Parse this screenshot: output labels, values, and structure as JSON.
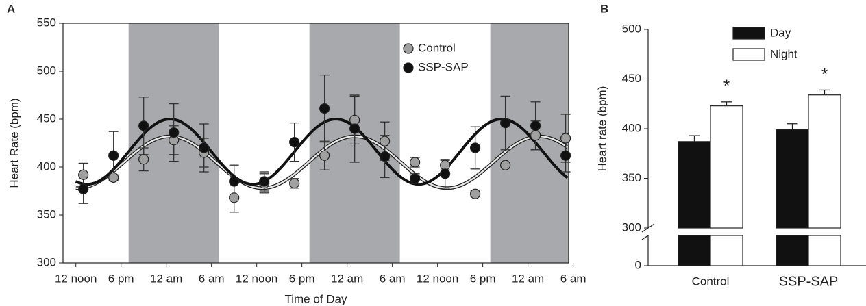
{
  "chart_data": [
    {
      "type": "scatter",
      "panel": "A",
      "xlabel": "Time of Day",
      "ylabel": "Heart Rate (bpm)",
      "xlim": [
        -1.7,
        65.4
      ],
      "ylim": [
        300,
        550
      ],
      "yticks": [
        300,
        350,
        400,
        450,
        500,
        550
      ],
      "xticks": [
        {
          "value": 0,
          "label": "12 noon"
        },
        {
          "value": 6,
          "label": "6 pm"
        },
        {
          "value": 12,
          "label": "12 am"
        },
        {
          "value": 18,
          "label": "6 am"
        },
        {
          "value": 24,
          "label": "12 noon"
        },
        {
          "value": 30,
          "label": "6 pm"
        },
        {
          "value": 36,
          "label": "12 am"
        },
        {
          "value": 42,
          "label": "6 am"
        },
        {
          "value": 48,
          "label": "12 noon"
        },
        {
          "value": 54,
          "label": "6 pm"
        },
        {
          "value": 60,
          "label": "12 am"
        },
        {
          "value": 66,
          "label": "6 am"
        }
      ],
      "shaded": [
        [
          7,
          19
        ],
        [
          31,
          43
        ],
        [
          55,
          65.4
        ]
      ],
      "shade_color": "#a7a9ac",
      "x": [
        1,
        5,
        9,
        13,
        17,
        21,
        25,
        29,
        33,
        37,
        41,
        45,
        49,
        53,
        57,
        61,
        65
      ],
      "series": [
        {
          "name": "Control",
          "color": "#a0a0a0",
          "values": [
            392,
            389,
            408,
            428,
            415,
            368,
            383,
            383,
            412,
            449,
            427,
            405,
            402,
            372,
            402,
            433,
            430
          ],
          "errors": [
            12,
            3,
            12,
            15,
            15,
            15,
            10,
            5,
            15,
            25,
            20,
            5,
            5,
            3,
            3,
            15,
            25
          ],
          "fit": {
            "mesor": 405,
            "amplitude": 27,
            "acrophase": 12.5,
            "period": 24.5
          }
        },
        {
          "name": "SSP-SAP",
          "color": "#111111",
          "values": [
            377,
            412,
            443,
            436,
            420,
            385,
            385,
            426,
            461,
            440,
            411,
            388,
            393,
            420,
            446,
            443,
            412
          ],
          "errors": [
            15,
            25,
            30,
            30,
            25,
            17,
            10,
            20,
            35,
            35,
            22,
            5,
            15,
            22,
            28,
            25,
            17
          ],
          "fit": {
            "mesor": 416,
            "amplitude": 34,
            "acrophase": 12.5,
            "period": 22
          }
        }
      ],
      "legend": "upper right"
    },
    {
      "type": "bar",
      "panel": "B",
      "ylabel": "Heart rate (bpm)",
      "categories": [
        "Control",
        "SSP-SAP"
      ],
      "ylim": [
        0,
        500
      ],
      "axis_break": [
        30,
        300
      ],
      "yticks": [
        0,
        300,
        350,
        400,
        450,
        500
      ],
      "series": [
        {
          "name": "Day",
          "color": "#111111",
          "values": [
            387,
            399
          ],
          "errors": [
            6,
            6
          ]
        },
        {
          "name": "Night",
          "color": "#ffffff",
          "values": [
            423,
            434
          ],
          "errors": [
            4,
            5
          ],
          "annotations": [
            "*",
            "*"
          ]
        }
      ],
      "legend": "upper left"
    }
  ]
}
